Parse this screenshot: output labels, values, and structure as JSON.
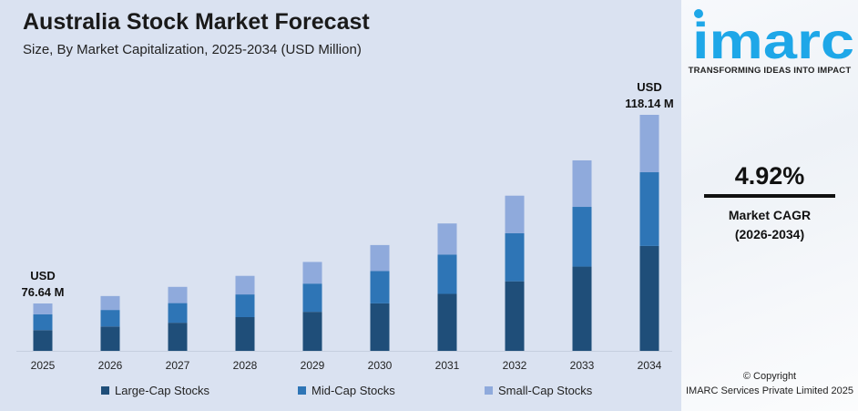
{
  "colors": {
    "large": "#1f4e79",
    "mid": "#2e75b6",
    "small": "#8faadc",
    "brand": "#1ea7e8",
    "background": "#dae2f1"
  },
  "chart_data": {
    "type": "bar",
    "stacked": true,
    "title": "Australia Stock Market Forecast",
    "subtitle": "Size, By Market Capitalization, 2025-2034 (USD Million)",
    "categories": [
      "2025",
      "2026",
      "2027",
      "2028",
      "2029",
      "2030",
      "2031",
      "2032",
      "2033",
      "2034"
    ],
    "series": [
      {
        "name": "Large-Cap Stocks",
        "values": [
          33.5,
          35.7,
          37.1,
          39.8,
          40.8,
          43.7,
          45.7,
          48.1,
          49.8,
          52.5
        ]
      },
      {
        "name": "Mid-Cap Stocks",
        "values": [
          25.5,
          24.3,
          25.9,
          26.8,
          29.5,
          29.9,
          31.6,
          33.2,
          35.3,
          36.9
        ]
      },
      {
        "name": "Small-Cap Stocks",
        "values": [
          17.64,
          20.4,
          21.4,
          21.9,
          22.6,
          23.8,
          24.9,
          26.0,
          27.5,
          28.74
        ]
      }
    ],
    "annotations": [
      {
        "category": "2025",
        "line1": "USD",
        "line2": "76.64 M"
      },
      {
        "category": "2034",
        "line1": "USD",
        "line2": "118.14 M"
      }
    ],
    "legend_position": "bottom",
    "grid": false,
    "y_axis_shown": false
  },
  "panel": {
    "logo_text": "imarc",
    "tagline": "TRANSFORMING IDEAS INTO IMPACT",
    "cagr_value": "4.92%",
    "cagr_label": "Market CAGR",
    "cagr_period": "(2026-2034)",
    "copyright_line1": "© Copyright",
    "copyright_line2": "IMARC Services Private Limited 2025"
  }
}
